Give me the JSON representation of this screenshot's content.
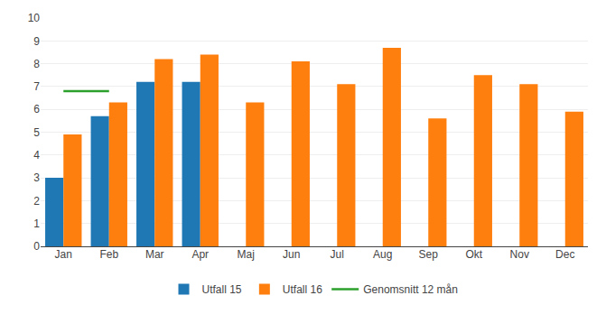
{
  "chart_data": {
    "type": "bar",
    "categories": [
      "Jan",
      "Feb",
      "Mar",
      "Apr",
      "Maj",
      "Jun",
      "Jul",
      "Aug",
      "Sep",
      "Okt",
      "Nov",
      "Dec"
    ],
    "series": [
      {
        "name": "Utfall 15",
        "type": "bar",
        "values": [
          3.0,
          5.7,
          7.2,
          7.2,
          null,
          null,
          null,
          null,
          null,
          null,
          null,
          null
        ]
      },
      {
        "name": "Utfall 16",
        "type": "bar",
        "values": [
          4.9,
          6.3,
          8.2,
          8.4,
          6.3,
          8.1,
          7.1,
          8.7,
          5.6,
          7.5,
          7.1,
          5.9
        ]
      },
      {
        "name": "Genomsnitt 12 mån",
        "type": "line",
        "values": [
          6.8,
          6.8,
          null,
          null,
          null,
          null,
          null,
          null,
          null,
          null,
          null,
          null
        ]
      }
    ],
    "ylim": [
      0,
      10
    ],
    "yticks": [
      0,
      1,
      2,
      3,
      4,
      5,
      6,
      7,
      8,
      9,
      10
    ],
    "grid": true,
    "legend": "bottom"
  }
}
